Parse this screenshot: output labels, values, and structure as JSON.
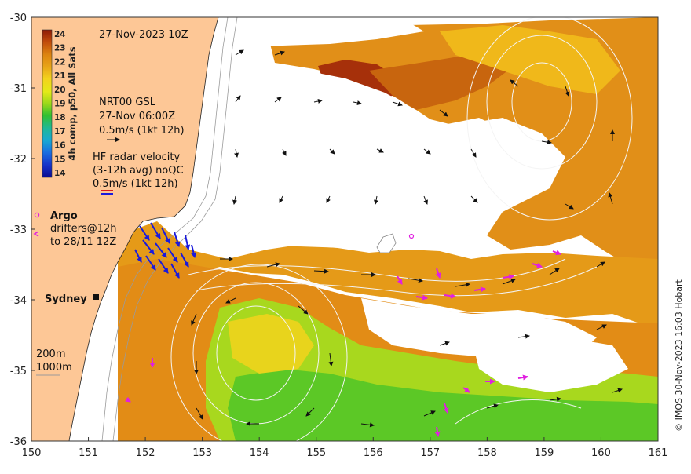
{
  "map": {
    "title_date": "27-Nov-2023 10Z",
    "extent": {
      "lon_min": 150,
      "lon_max": 161,
      "lat_min": -36,
      "lat_max": -30
    },
    "x_ticks": [
      "150",
      "151",
      "152",
      "153",
      "154",
      "155",
      "156",
      "157",
      "158",
      "159",
      "160",
      "161"
    ],
    "y_ticks": [
      "-30",
      "-31",
      "-32",
      "-33",
      "-34",
      "-35",
      "-36"
    ],
    "colors": {
      "land": "#fdc796",
      "ocean_nodata": "#ffffff",
      "hf_radar_arrow": "#1a1adc",
      "argo": "#e020e0",
      "drifter": "#e020e0",
      "gsl_arrow": "#111111",
      "contour": "#f4f4f4",
      "bathymetry": "#9a9a9a"
    }
  },
  "colorbar": {
    "label": "4h comp, p50, All Sats",
    "ticks": [
      "24",
      "23",
      "22",
      "21",
      "20",
      "19",
      "18",
      "17",
      "16",
      "15",
      "14"
    ],
    "stops": [
      "#8e1a05",
      "#c04a0a",
      "#dd8510",
      "#e8a418",
      "#f3d21c",
      "#e3ea18",
      "#9bd81a",
      "#32c030",
      "#1fb89a",
      "#1aa9d2",
      "#1b6fe0",
      "#1630c8",
      "#0a0a90"
    ]
  },
  "legend": {
    "gsl_line1": "NRT00 GSL",
    "gsl_line2": "27-Nov 06:00Z",
    "gsl_line3": "0.5m/s (1kt 12h)",
    "hf_line1": "HF radar velocity",
    "hf_line2": "(3-12h avg) noQC",
    "hf_line3": "0.5m/s (1kt 12h)",
    "argo_label": "Argo",
    "drifters_line1": "drifters@12h",
    "drifters_line2": "to 28/11 12Z",
    "bathy_200": "200m",
    "bathy_1000": "1000m"
  },
  "places": {
    "sydney": "Sydney"
  },
  "credit": "© IMOS 30-Nov-2023 16:03 Hobart"
}
